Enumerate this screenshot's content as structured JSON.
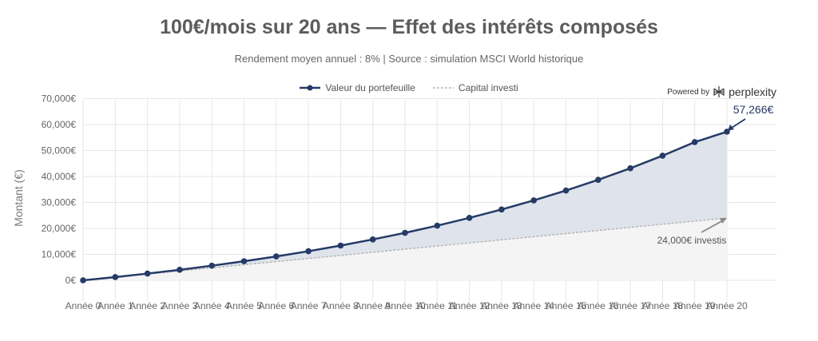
{
  "header": {
    "title": "100€/mois sur 20 ans — Effet des intérêts composés",
    "subtitle": "Rendement moyen annuel : 8% | Source : simulation MSCI World historique"
  },
  "branding": {
    "powered_by": "Powered by",
    "name": "perplexity"
  },
  "colors": {
    "portfolio": "#253a66",
    "capital": "#b5b5b5",
    "grid": "#e6e6e6",
    "fill_portfolio": "#dde2ea",
    "fill_capital": "#f4f4f4"
  },
  "chart_data": {
    "type": "area",
    "title": "100€/mois sur 20 ans — Effet des intérêts composés",
    "subtitle": "Rendement moyen annuel : 8% | Source : simulation MSCI World historique",
    "xlabel": "",
    "ylabel": "Montant (€)",
    "ylim": [
      -8000,
      72000
    ],
    "yticks": [
      0,
      10000,
      20000,
      30000,
      40000,
      50000,
      60000,
      70000
    ],
    "ytick_labels": [
      "0€",
      "10,000€",
      "20,000€",
      "30,000€",
      "40,000€",
      "50,000€",
      "60,000€",
      "70,000€"
    ],
    "categories": [
      "Année 0",
      "Année 1",
      "Année 2",
      "Année 3",
      "Année 4",
      "Année 5",
      "Année 6",
      "Année 7",
      "Année 8",
      "Année 9",
      "Année 10",
      "Année 11",
      "Année 12",
      "Année 13",
      "Année 14",
      "Année 15",
      "Année 16",
      "Année 17",
      "Année 18",
      "Année 19",
      "Année 20"
    ],
    "series": [
      {
        "name": "Valeur du portefeuille",
        "values": [
          0,
          1245,
          2594,
          4054,
          5635,
          7348,
          9203,
          11212,
          13388,
          15744,
          18295,
          21058,
          24051,
          27292,
          30802,
          34604,
          38721,
          43180,
          48009,
          53239,
          57266
        ]
      },
      {
        "name": "Capital investi",
        "values": [
          0,
          1200,
          2400,
          3600,
          4800,
          6000,
          7200,
          8400,
          9600,
          10800,
          12000,
          13200,
          14400,
          15600,
          16800,
          18000,
          19200,
          20400,
          21600,
          22800,
          24000
        ]
      }
    ],
    "grid": true,
    "legend": "top-center",
    "annotations": [
      {
        "text": "57,266€",
        "target": "Année 20",
        "series": "Valeur du portefeuille"
      },
      {
        "text": "24,000€ investis",
        "target": "Année 20",
        "series": "Capital investi"
      }
    ]
  }
}
